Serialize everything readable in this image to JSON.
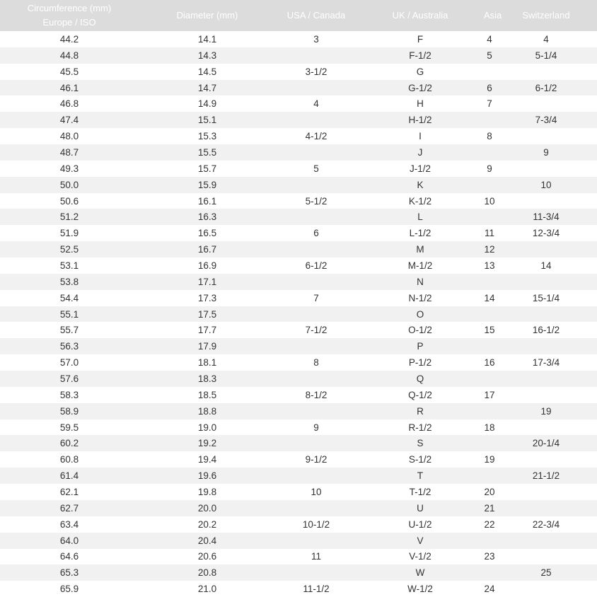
{
  "headers": [
    "Circumference (mm)\nEurope / ISO",
    "Diameter (mm)",
    "USA / Canada",
    "UK / Australia",
    "Asia",
    "Switzerland"
  ],
  "header_lines": [
    [
      "Circumference (mm)",
      "Europe / ISO"
    ]
  ],
  "rows": [
    [
      "44.2",
      "14.1",
      "3",
      "F",
      "4",
      "4"
    ],
    [
      "44.8",
      "14.3",
      "",
      "F-1/2",
      "5",
      "5-1/4"
    ],
    [
      "45.5",
      "14.5",
      "3-1/2",
      "G",
      "",
      ""
    ],
    [
      "46.1",
      "14.7",
      "",
      "G-1/2",
      "6",
      "6-1/2"
    ],
    [
      "46.8",
      "14.9",
      "4",
      "H",
      "7",
      ""
    ],
    [
      "47.4",
      "15.1",
      "",
      "H-1/2",
      "",
      "7-3/4"
    ],
    [
      "48.0",
      "15.3",
      "4-1/2",
      "I",
      "8",
      ""
    ],
    [
      "48.7",
      "15.5",
      "",
      "J",
      "",
      "9"
    ],
    [
      "49.3",
      "15.7",
      "5",
      "J-1/2",
      "9",
      ""
    ],
    [
      "50.0",
      "15.9",
      "",
      "K",
      "",
      "10"
    ],
    [
      "50.6",
      "16.1",
      "5-1/2",
      "K-1/2",
      "10",
      ""
    ],
    [
      "51.2",
      "16.3",
      "",
      "L",
      "",
      "11-3/4"
    ],
    [
      "51.9",
      "16.5",
      "6",
      "L-1/2",
      "11",
      "12-3/4"
    ],
    [
      "52.5",
      "16.7",
      "",
      "M",
      "12",
      ""
    ],
    [
      "53.1",
      "16.9",
      "6-1/2",
      "M-1/2",
      "13",
      "14"
    ],
    [
      "53.8",
      "17.1",
      "",
      "N",
      "",
      ""
    ],
    [
      "54.4",
      "17.3",
      "7",
      "N-1/2",
      "14",
      "15-1/4"
    ],
    [
      "55.1",
      "17.5",
      "",
      "O",
      "",
      ""
    ],
    [
      "55.7",
      "17.7",
      "7-1/2",
      "O-1/2",
      "15",
      "16-1/2"
    ],
    [
      "56.3",
      "17.9",
      "",
      "P",
      "",
      ""
    ],
    [
      "57.0",
      "18.1",
      "8",
      "P-1/2",
      "16",
      "17-3/4"
    ],
    [
      "57.6",
      "18.3",
      "",
      "Q",
      "",
      ""
    ],
    [
      "58.3",
      "18.5",
      "8-1/2",
      "Q-1/2",
      "17",
      ""
    ],
    [
      "58.9",
      "18.8",
      "",
      "R",
      "",
      "19"
    ],
    [
      "59.5",
      "19.0",
      "9",
      "R-1/2",
      "18",
      ""
    ],
    [
      "60.2",
      "19.2",
      "",
      "S",
      "",
      "20-1/4"
    ],
    [
      "60.8",
      "19.4",
      "9-1/2",
      "S-1/2",
      "19",
      ""
    ],
    [
      "61.4",
      "19.6",
      "",
      "T",
      "",
      "21-1/2"
    ],
    [
      "62.1",
      "19.8",
      "10",
      "T-1/2",
      "20",
      ""
    ],
    [
      "62.7",
      "20.0",
      "",
      "U",
      "21",
      ""
    ],
    [
      "63.4",
      "20.2",
      "10-1/2",
      "U-1/2",
      "22",
      "22-3/4"
    ],
    [
      "64.0",
      "20.4",
      "",
      "V",
      "",
      ""
    ],
    [
      "64.6",
      "20.6",
      "11",
      "V-1/2",
      "23",
      ""
    ],
    [
      "65.3",
      "20.8",
      "",
      "W",
      "",
      "25"
    ],
    [
      "65.9",
      "21.0",
      "11-1/2",
      "W-1/2",
      "24",
      ""
    ]
  ],
  "colors": {
    "header_bg": "#dcdcdc",
    "header_text": "#ffffff",
    "stripe": "#f1f1f1"
  }
}
